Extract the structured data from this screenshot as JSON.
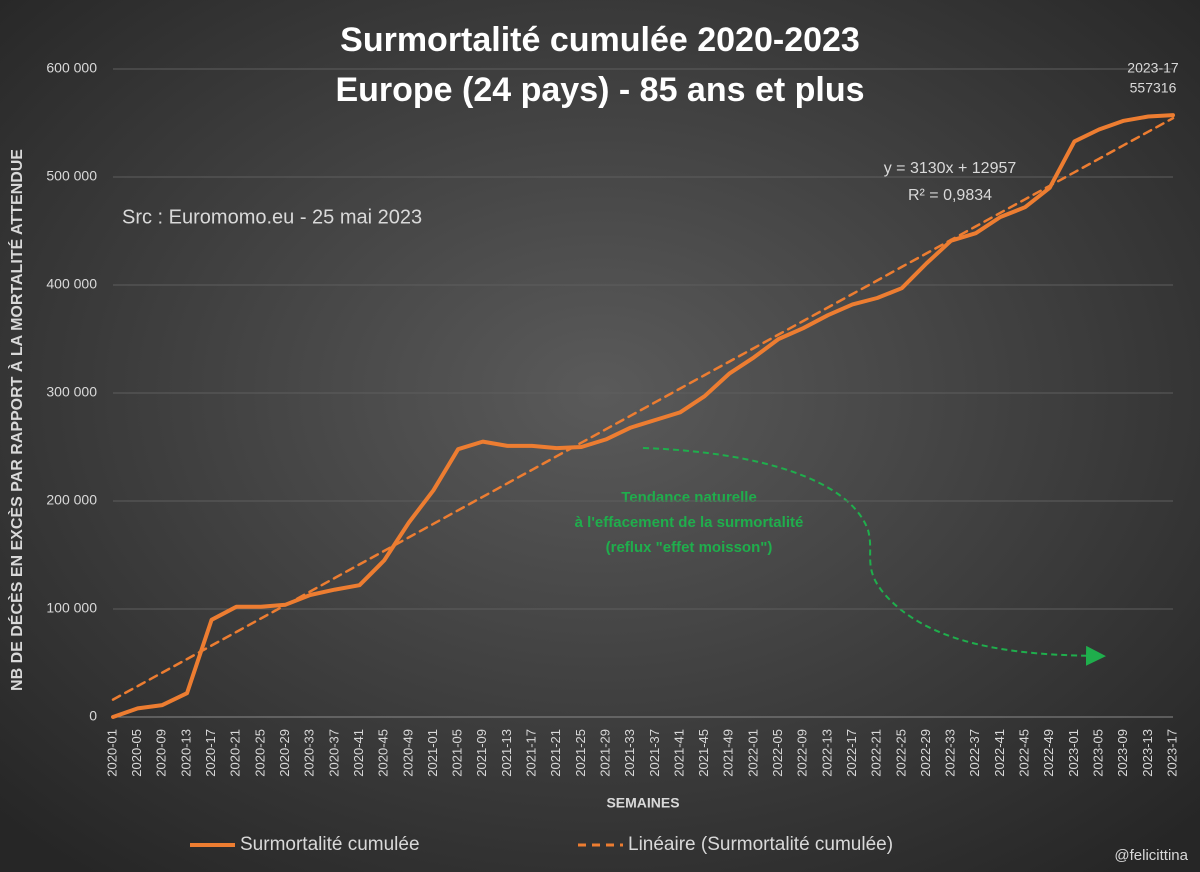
{
  "chart_data": {
    "type": "line",
    "title": "Surmortalité cumulée 2020-2023",
    "subtitle": "Europe (24 pays) - 85 ans et plus",
    "y_label": "NB DE DÉCÈS EN EXCÈS PAR RAPPORT À LA MORTALITÉ ATTENDUE",
    "x_label": "SEMAINES",
    "annotations": [
      "Src : Euromomo.eu  - 25 mai 2023",
      "y = 3130x + 12957",
      "R² = 0,9834",
      "Tendance naturelle",
      "à l'effacement de la surmortalité",
      "(reflux \"effet moisson\")",
      "@felicittina"
    ],
    "categories": [
      "2020-01",
      "2020-05",
      "2020-09",
      "2020-13",
      "2020-17",
      "2020-21",
      "2020-25",
      "2020-29",
      "2020-33",
      "2020-37",
      "2020-41",
      "2020-45",
      "2020-49",
      "2021-01",
      "2021-05",
      "2021-09",
      "2021-13",
      "2021-17",
      "2021-21",
      "2021-25",
      "2021-29",
      "2021-33",
      "2021-37",
      "2021-41",
      "2021-45",
      "2021-49",
      "2022-01",
      "2022-05",
      "2022-09",
      "2022-13",
      "2022-17",
      "2022-21",
      "2022-25",
      "2022-29",
      "2022-33",
      "2022-37",
      "2022-41",
      "2022-45",
      "2022-49",
      "2023-01",
      "2023-05",
      "2023-09",
      "2023-13",
      "2023-17"
    ],
    "series": [
      {
        "name": "Surmortalité cumulée",
        "color": "#ed7d31",
        "dashed": false,
        "values": [
          0,
          8000,
          11000,
          22000,
          90000,
          102000,
          102000,
          104000,
          113000,
          118000,
          122000,
          145000,
          180000,
          210000,
          248000,
          255000,
          251000,
          251000,
          249000,
          250000,
          257000,
          268000,
          275000,
          282000,
          297000,
          318000,
          333000,
          350000,
          360000,
          372000,
          382000,
          388000,
          397000,
          420000,
          441000,
          448000,
          463000,
          472000,
          490000,
          533000,
          544000,
          552000,
          556000,
          557316
        ]
      },
      {
        "name": "Linéaire (Surmortalité cumulée)",
        "color": "#ed7d31",
        "dashed": true,
        "values": [
          16087,
          28607,
          41127,
          53647,
          66167,
          78687,
          91207,
          103727,
          116247,
          128767,
          141287,
          153807,
          166327,
          178847,
          191367,
          203887,
          216407,
          228927,
          241447,
          253967,
          266487,
          279007,
          291527,
          304047,
          316567,
          329087,
          341607,
          354127,
          366647,
          379167,
          391687,
          404207,
          416727,
          429247,
          441767,
          454287,
          466807,
          479327,
          491847,
          504367,
          516887,
          529407,
          541927,
          554447
        ]
      }
    ],
    "ylim": [
      0,
      600000
    ],
    "yticks": [
      0,
      {
        "value": 100000,
        "label": "100 000"
      },
      {
        "value": 200000,
        "label": "200 000"
      },
      {
        "value": 300000,
        "label": "300 000"
      },
      {
        "value": 400000,
        "label": "400 000"
      },
      {
        "value": 500000,
        "label": "500 000"
      },
      {
        "value": 600000,
        "label": "600 000"
      }
    ],
    "grid": true
  }
}
